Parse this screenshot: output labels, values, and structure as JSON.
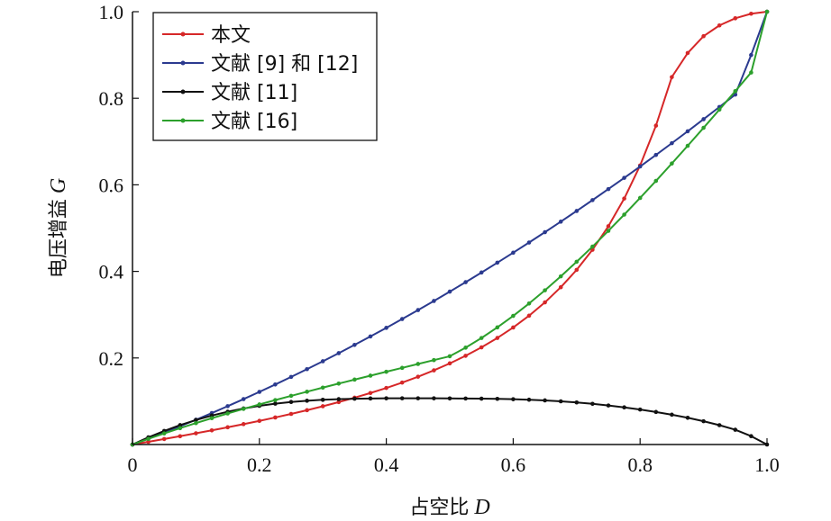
{
  "chart_data": {
    "type": "line",
    "xlabel": "占空比",
    "xlabel_var": "D",
    "ylabel": "电压增益",
    "ylabel_var": "G",
    "xlim": [
      0,
      1
    ],
    "ylim": [
      0,
      1
    ],
    "xticks": [
      0,
      0.2,
      0.4,
      0.6,
      0.8,
      1.0
    ],
    "xtick_labels": [
      "0",
      "0.2",
      "0.4",
      "0.6",
      "0.8",
      "1.0"
    ],
    "yticks": [
      0.2,
      0.4,
      0.6,
      0.8,
      1.0
    ],
    "ytick_labels": [
      "0.2",
      "0.4",
      "0.6",
      "0.8",
      "1.0"
    ],
    "grid": false,
    "legend_position": "top-left",
    "x": [
      0,
      0.025,
      0.05,
      0.075,
      0.1,
      0.125,
      0.15,
      0.175,
      0.2,
      0.225,
      0.25,
      0.275,
      0.3,
      0.325,
      0.35,
      0.375,
      0.4,
      0.425,
      0.45,
      0.475,
      0.5,
      0.525,
      0.55,
      0.575,
      0.6,
      0.625,
      0.65,
      0.675,
      0.7,
      0.725,
      0.75,
      0.775,
      0.8,
      0.825,
      0.85,
      0.875,
      0.9,
      0.925,
      0.95,
      0.975,
      1.0
    ],
    "series": [
      {
        "name": "本文",
        "color": "#d62728",
        "values": [
          0.0,
          0.0063,
          0.0127,
          0.0192,
          0.0259,
          0.0327,
          0.0398,
          0.0471,
          0.0546,
          0.0625,
          0.0707,
          0.0793,
          0.0884,
          0.098,
          0.1082,
          0.119,
          0.1306,
          0.1431,
          0.1566,
          0.1713,
          0.1874,
          0.205,
          0.2245,
          0.2462,
          0.2704,
          0.2976,
          0.3284,
          0.3634,
          0.4035,
          0.45,
          0.5043,
          0.5683,
          0.6447,
          0.7368,
          0.849,
          0.9045,
          0.9434,
          0.9683,
          0.9848,
          0.9953,
          1.0
        ]
      },
      {
        "name": "文献 [9] 和 [12]",
        "color": "#2b3a8f",
        "values": [
          0.0,
          0.0135,
          0.0276,
          0.0422,
          0.0572,
          0.0727,
          0.0886,
          0.1049,
          0.1216,
          0.1387,
          0.1562,
          0.1741,
          0.1924,
          0.2111,
          0.2302,
          0.2497,
          0.2696,
          0.2899,
          0.3106,
          0.3317,
          0.3532,
          0.3751,
          0.3974,
          0.4201,
          0.4432,
          0.4667,
          0.4906,
          0.5149,
          0.5396,
          0.5647,
          0.5902,
          0.6161,
          0.6424,
          0.6691,
          0.6962,
          0.7237,
          0.7516,
          0.7799,
          0.8086,
          0.9,
          1.0
        ]
      },
      {
        "name": "文献 [11]",
        "color": "#111111",
        "values": [
          0.0,
          0.0165,
          0.0314,
          0.0448,
          0.0566,
          0.0669,
          0.0757,
          0.0832,
          0.0894,
          0.0944,
          0.0983,
          0.1012,
          0.1033,
          0.1048,
          0.1058,
          0.1064,
          0.1067,
          0.1068,
          0.1068,
          0.1067,
          0.1065,
          0.1063,
          0.106,
          0.1055,
          0.1047,
          0.1035,
          0.1019,
          0.0998,
          0.0972,
          0.094,
          0.0902,
          0.0858,
          0.0808,
          0.0752,
          0.0689,
          0.0618,
          0.0538,
          0.0447,
          0.0341,
          0.0193,
          0.0
        ]
      },
      {
        "name": "文献 [16]",
        "color": "#2ca02c",
        "values": [
          0.0,
          0.0131,
          0.0257,
          0.0378,
          0.0495,
          0.0608,
          0.0717,
          0.0823,
          0.0926,
          0.1026,
          0.1124,
          0.122,
          0.1315,
          0.1408,
          0.15,
          0.1591,
          0.1681,
          0.1771,
          0.1861,
          0.195,
          0.2039,
          0.2238,
          0.2461,
          0.2706,
          0.2972,
          0.3258,
          0.3563,
          0.3885,
          0.4222,
          0.4573,
          0.4937,
          0.5312,
          0.5697,
          0.6091,
          0.6493,
          0.6902,
          0.7317,
          0.7738,
          0.8164,
          0.8595,
          1.0
        ]
      }
    ]
  }
}
